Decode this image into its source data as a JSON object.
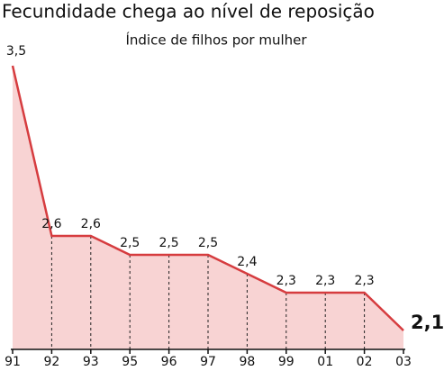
{
  "chart_data": {
    "type": "area",
    "title": "Fecundidade chega ao nível de reposição",
    "subtitle": "Índice de filhos por mulher",
    "categories": [
      "91",
      "92",
      "93",
      "95",
      "96",
      "97",
      "98",
      "99",
      "01",
      "02",
      "03"
    ],
    "values": [
      3.5,
      2.6,
      2.6,
      2.5,
      2.5,
      2.5,
      2.4,
      2.3,
      2.3,
      2.3,
      2.1
    ],
    "value_labels": [
      "3,5",
      "2,6",
      "2,6",
      "2,5",
      "2,5",
      "2,5",
      "2,4",
      "2,3",
      "2,3",
      "2,3",
      "2,1"
    ],
    "color": "#d63c3f",
    "fill": "#f8d3d3",
    "ylim": [
      2,
      3.5
    ]
  }
}
